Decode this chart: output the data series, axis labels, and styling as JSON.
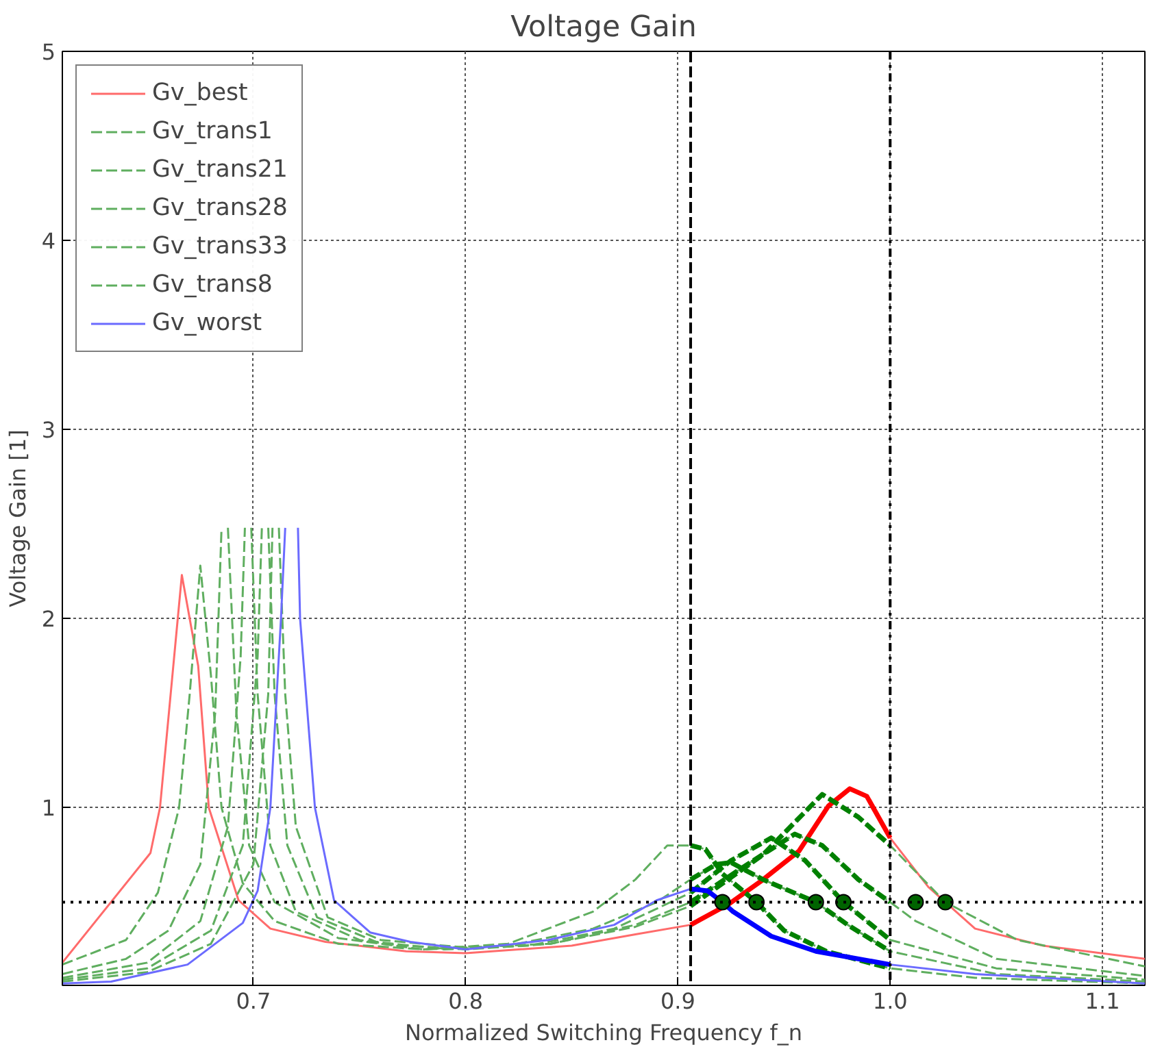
{
  "chart_data": {
    "type": "line",
    "title": "Voltage Gain",
    "xlabel": "Normalized Switching Frequency f_n",
    "ylabel": "Voltage Gain [1]",
    "xlim": [
      0.61,
      1.12
    ],
    "ylim": [
      0.06,
      5
    ],
    "xticks": [
      0.7,
      0.8,
      0.9,
      {
        "value": 1.0,
        "label": "1.0"
      },
      1.1
    ],
    "yticks": [
      1,
      2,
      3,
      4,
      5
    ],
    "grid": true,
    "legend": "top left",
    "ref_lines": [
      {
        "axis": "y",
        "value": 0.5,
        "color": "#000000",
        "line_style": "dotted"
      },
      {
        "axis": "x",
        "value": 0.906,
        "color": "#000000",
        "line_style": "dashed"
      },
      {
        "axis": "x",
        "value": 1.0,
        "color": "#000000",
        "line_style": "dashdot"
      }
    ],
    "series": [
      {
        "name": "Gv_best",
        "color": "#ff6b6b",
        "line_style": "solid",
        "x": [
          0.61,
          0.6515,
          0.656,
          0.6663,
          0.674,
          0.679,
          0.693,
          0.708,
          0.734,
          0.772,
          0.8,
          0.85,
          0.88,
          0.906,
          0.924,
          0.939,
          0.957,
          0.971,
          0.981,
          0.989,
          1.0,
          1.018,
          1.04,
          1.072,
          1.12
        ],
        "values": [
          0.18,
          0.76,
          1.0,
          2.23,
          1.75,
          1.0,
          0.51,
          0.36,
          0.29,
          0.24,
          0.23,
          0.27,
          0.33,
          0.38,
          0.49,
          0.61,
          0.77,
          1.01,
          1.1,
          1.06,
          0.84,
          0.58,
          0.36,
          0.27,
          0.2
        ]
      },
      {
        "name": "Gv_trans1",
        "color": "#5fae5f",
        "line_style": "dashed",
        "x": [
          0.61,
          0.64,
          0.655,
          0.665,
          0.67,
          0.675,
          0.68,
          0.685,
          0.695,
          0.71,
          0.74,
          0.78,
          0.82,
          0.86,
          0.88,
          0.895,
          0.906,
          0.913,
          0.921,
          0.937,
          0.95,
          0.97,
          1.0,
          1.04,
          1.12
        ],
        "values": [
          0.17,
          0.3,
          0.55,
          1.0,
          1.6,
          2.28,
          1.7,
          1.0,
          0.6,
          0.4,
          0.28,
          0.25,
          0.28,
          0.45,
          0.62,
          0.8,
          0.8,
          0.78,
          0.65,
          0.5,
          0.35,
          0.24,
          0.15,
          0.1,
          0.07
        ]
      },
      {
        "name": "Gv_trans21",
        "color": "#5fae5f",
        "line_style": "dashed",
        "x": [
          0.61,
          0.64,
          0.66,
          0.675,
          0.682,
          0.685,
          0.686,
          0.688,
          0.692,
          0.698,
          0.71,
          0.74,
          0.78,
          0.82,
          0.86,
          0.89,
          0.906,
          0.918,
          0.925,
          0.94,
          0.965,
          0.98,
          1.0,
          1.05,
          1.12
        ],
        "values": [
          0.12,
          0.2,
          0.35,
          0.7,
          1.5,
          2.48,
          null,
          2.48,
          1.5,
          0.8,
          0.5,
          0.31,
          0.25,
          0.27,
          0.36,
          0.5,
          0.62,
          0.7,
          0.71,
          0.62,
          0.5,
          0.38,
          0.24,
          0.12,
          0.08
        ]
      },
      {
        "name": "Gv_trans28",
        "color": "#5fae5f",
        "line_style": "dashed",
        "x": [
          0.61,
          0.65,
          0.675,
          0.688,
          0.694,
          0.696,
          0.697,
          0.699,
          0.702,
          0.708,
          0.72,
          0.75,
          0.79,
          0.83,
          0.87,
          0.906,
          0.925,
          0.944,
          0.96,
          0.978,
          1.0,
          1.05,
          1.12
        ],
        "values": [
          0.1,
          0.18,
          0.4,
          0.9,
          1.8,
          2.48,
          null,
          2.48,
          1.6,
          0.8,
          0.45,
          0.3,
          0.25,
          0.27,
          0.36,
          0.55,
          0.72,
          0.84,
          0.72,
          0.5,
          0.3,
          0.15,
          0.09
        ]
      },
      {
        "name": "Gv_trans33",
        "color": "#5fae5f",
        "line_style": "dashed",
        "x": [
          0.61,
          0.65,
          0.68,
          0.695,
          0.702,
          0.704,
          0.705,
          0.707,
          0.71,
          0.716,
          0.73,
          0.76,
          0.8,
          0.84,
          0.88,
          0.906,
          0.93,
          0.955,
          0.968,
          0.985,
          1.0,
          1.012,
          1.05,
          1.12
        ],
        "values": [
          0.09,
          0.15,
          0.35,
          0.8,
          1.8,
          2.48,
          null,
          2.48,
          1.6,
          0.8,
          0.42,
          0.28,
          0.25,
          0.28,
          0.38,
          0.5,
          0.68,
          0.86,
          0.8,
          0.62,
          0.5,
          0.4,
          0.2,
          0.11
        ]
      },
      {
        "name": "Gv_trans8",
        "color": "#5fae5f",
        "line_style": "dashed",
        "x": [
          0.61,
          0.65,
          0.68,
          0.7,
          0.707,
          0.709,
          0.7105,
          0.712,
          0.715,
          0.72,
          0.735,
          0.76,
          0.8,
          0.84,
          0.88,
          0.906,
          0.94,
          0.968,
          0.985,
          1.0,
          1.026,
          1.06,
          1.12
        ],
        "values": [
          0.08,
          0.13,
          0.28,
          0.7,
          1.6,
          2.48,
          null,
          2.48,
          1.6,
          0.9,
          0.42,
          0.3,
          0.26,
          0.28,
          0.37,
          0.48,
          0.75,
          1.07,
          0.95,
          0.8,
          0.5,
          0.3,
          0.16
        ]
      },
      {
        "name": "Gv_worst",
        "color": "#6b6bff",
        "line_style": "solid",
        "x": [
          0.61,
          0.633,
          0.669,
          0.695,
          0.702,
          0.708,
          0.713,
          0.715,
          0.718,
          0.721,
          0.722,
          0.729,
          0.738,
          0.755,
          0.774,
          0.8,
          0.839,
          0.87,
          0.89,
          0.906,
          0.914,
          0.921,
          0.926,
          0.944,
          0.965,
          1.0,
          1.04,
          1.12
        ],
        "values": [
          0.07,
          0.08,
          0.17,
          0.39,
          0.56,
          1.0,
          2.0,
          2.48,
          null,
          2.48,
          2.0,
          1.0,
          0.51,
          0.34,
          0.29,
          0.25,
          0.3,
          0.38,
          0.51,
          0.57,
          0.56,
          0.5,
          0.45,
          0.32,
          0.24,
          0.17,
          0.12,
          0.07
        ]
      },
      {
        "color": "#ff0000",
        "line_style": "solid",
        "x": [
          0.906,
          0.924,
          0.939,
          0.957,
          0.971,
          0.981,
          0.989,
          1.0
        ],
        "values": [
          0.38,
          0.49,
          0.61,
          0.77,
          1.01,
          1.1,
          1.06,
          0.84
        ]
      },
      {
        "color": "#008000",
        "line_style": "dashed",
        "x": [
          0.906,
          0.913,
          0.921,
          0.937,
          0.95,
          0.97,
          1.0
        ],
        "values": [
          0.8,
          0.78,
          0.65,
          0.5,
          0.35,
          0.24,
          0.15
        ]
      },
      {
        "color": "#008000",
        "line_style": "dashed",
        "x": [
          0.906,
          0.918,
          0.925,
          0.94,
          0.965,
          0.98,
          1.0
        ],
        "values": [
          0.62,
          0.7,
          0.71,
          0.62,
          0.5,
          0.38,
          0.24
        ]
      },
      {
        "color": "#008000",
        "line_style": "dashed",
        "x": [
          0.906,
          0.925,
          0.944,
          0.96,
          0.978,
          1.0
        ],
        "values": [
          0.55,
          0.72,
          0.84,
          0.72,
          0.5,
          0.3
        ]
      },
      {
        "color": "#008000",
        "line_style": "dashed",
        "x": [
          0.906,
          0.93,
          0.955,
          0.968,
          0.985,
          1.0
        ],
        "values": [
          0.5,
          0.68,
          0.86,
          0.8,
          0.62,
          0.5
        ]
      },
      {
        "color": "#008000",
        "line_style": "dashed",
        "x": [
          0.906,
          0.94,
          0.968,
          0.985,
          1.0
        ],
        "values": [
          0.48,
          0.75,
          1.07,
          0.95,
          0.8
        ]
      },
      {
        "color": "#0000ff",
        "line_style": "solid",
        "x": [
          0.906,
          0.914,
          0.921,
          0.926,
          0.944,
          0.965,
          1.0
        ],
        "values": [
          0.57,
          0.56,
          0.5,
          0.45,
          0.32,
          0.24,
          0.17
        ]
      },
      {
        "type": "scatter",
        "marker": "circle",
        "color": "#006400",
        "x": [
          0.921,
          0.937,
          0.965,
          0.978,
          1.012,
          1.026
        ],
        "values": [
          0.5,
          0.5,
          0.5,
          0.5,
          0.5,
          0.5
        ]
      }
    ]
  }
}
